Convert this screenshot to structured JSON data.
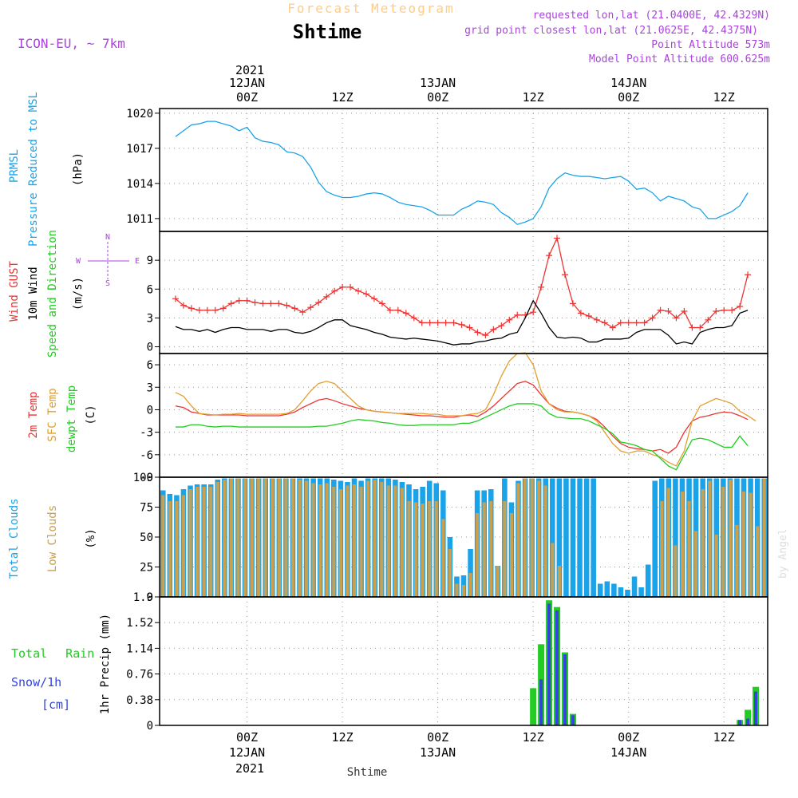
{
  "header": {
    "forecast_label": "Forecast Meteogram",
    "location": "Shtime",
    "model": "ICON-EU, ~ 7km",
    "requested": "requested lon,lat (21.0400E, 42.4329N)",
    "grid_point": "grid point closest lon,lat (21.0625E, 42.4375N)",
    "point_altitude": "Point Altitude 573m",
    "model_altitude": "Model Point Altitude 600.625m",
    "credit": "by Angel",
    "footer_location": "Shtime"
  },
  "time_axis": {
    "top_year": "2021",
    "bottom_year": "2021",
    "ticks": [
      {
        "pos": 9,
        "line1": "00Z",
        "line2": "12JAN"
      },
      {
        "pos": 21,
        "line1": "12Z",
        "line2": ""
      },
      {
        "pos": 33,
        "line1": "00Z",
        "line2": "13JAN"
      },
      {
        "pos": 45,
        "line1": "12Z",
        "line2": ""
      },
      {
        "pos": 57,
        "line1": "00Z",
        "line2": "14JAN"
      },
      {
        "pos": 69,
        "line1": "12Z",
        "line2": ""
      }
    ],
    "range": [
      -2,
      74.5
    ]
  },
  "colors": {
    "pressure": "#1aa3e8",
    "gust": "#ee3333",
    "wind": "#000000",
    "temp2m": "#ee3333",
    "sfc": "#e0a030",
    "dew": "#22cc22",
    "total_clouds": "#1aa3e8",
    "low_clouds": "#c8a050",
    "rain": "#22cc22",
    "snow": "#3344dd",
    "header_purple": "#aa44dd",
    "header_orange": "#ffcc88"
  },
  "chart_data": [
    {
      "type": "line",
      "title": "PRMSL",
      "ylabel_lines": [
        "PRMSL",
        "Pressure Reduced to MSL",
        "(hPa)"
      ],
      "yticks": [
        1011,
        1014,
        1017,
        1020
      ],
      "ylim": [
        1009.9,
        1020.4
      ],
      "series": [
        {
          "name": "PRMSL",
          "color": "#1aa3e8",
          "values": [
            1018.0,
            1018.5,
            1019.0,
            1019.1,
            1019.3,
            1019.3,
            1019.1,
            1018.9,
            1018.5,
            1018.8,
            1017.9,
            1017.6,
            1017.5,
            1017.3,
            1016.7,
            1016.6,
            1016.3,
            1015.4,
            1014.1,
            1013.3,
            1013.0,
            1012.8,
            1012.8,
            1012.9,
            1013.1,
            1013.2,
            1013.1,
            1012.8,
            1012.4,
            1012.2,
            1012.1,
            1012.0,
            1011.7,
            1011.3,
            1011.3,
            1011.3,
            1011.8,
            1012.1,
            1012.5,
            1012.4,
            1012.2,
            1011.5,
            1011.1,
            1010.5,
            1010.7,
            1011.0,
            1012.0,
            1013.6,
            1014.4,
            1014.9,
            1014.7,
            1014.6,
            1014.6,
            1014.5,
            1014.4,
            1014.5,
            1014.6,
            1014.2,
            1013.5,
            1013.6,
            1013.2,
            1012.5,
            1012.9,
            1012.7,
            1012.5,
            1012.0,
            1011.8,
            1011.0,
            1011.0,
            1011.3,
            1011.6,
            1012.1,
            1013.2
          ]
        }
      ]
    },
    {
      "type": "line",
      "title": "Wind",
      "ylabel_lines": [
        "Wind GUST",
        "10m Wind",
        "Speed and Direction",
        "(m/s)"
      ],
      "compass": {
        "w": "W",
        "e": "E",
        "n": "N",
        "s": "S"
      },
      "yticks": [
        0,
        3,
        6,
        9
      ],
      "ylim": [
        -0.7,
        12
      ],
      "series": [
        {
          "name": "Wind GUST",
          "color": "#ee3333",
          "values": [
            5.0,
            4.3,
            4.0,
            3.8,
            3.8,
            3.8,
            4.0,
            4.5,
            4.8,
            4.8,
            4.6,
            4.5,
            4.5,
            4.5,
            4.3,
            4.0,
            3.6,
            4.1,
            4.6,
            5.2,
            5.8,
            6.2,
            6.2,
            5.8,
            5.5,
            5.0,
            4.5,
            3.8,
            3.8,
            3.5,
            3.0,
            2.5,
            2.5,
            2.5,
            2.5,
            2.5,
            2.3,
            2.0,
            1.5,
            1.2,
            1.8,
            2.2,
            2.8,
            3.3,
            3.3,
            3.6,
            6.2,
            9.5,
            11.3,
            7.5,
            4.5,
            3.5,
            3.2,
            2.8,
            2.5,
            2.0,
            2.5,
            2.5,
            2.5,
            2.5,
            3.0,
            3.8,
            3.7,
            3.0,
            3.7,
            2.0,
            2.0,
            2.8,
            3.7,
            3.8,
            3.8,
            4.2,
            7.5
          ]
        },
        {
          "name": "10m Wind",
          "color": "#000000",
          "values": [
            2.1,
            1.8,
            1.8,
            1.6,
            1.8,
            1.5,
            1.8,
            2.0,
            2.0,
            1.8,
            1.8,
            1.8,
            1.6,
            1.8,
            1.8,
            1.5,
            1.4,
            1.6,
            2.0,
            2.5,
            2.8,
            2.8,
            2.2,
            2.0,
            1.8,
            1.5,
            1.3,
            1.0,
            0.9,
            0.8,
            0.9,
            0.8,
            0.7,
            0.6,
            0.4,
            0.2,
            0.3,
            0.3,
            0.5,
            0.6,
            0.8,
            0.9,
            1.3,
            1.5,
            3.0,
            4.8,
            3.5,
            2.0,
            1.0,
            0.9,
            1.0,
            0.9,
            0.5,
            0.5,
            0.8,
            0.8,
            0.8,
            0.9,
            1.5,
            1.8,
            1.8,
            1.8,
            1.2,
            0.3,
            0.5,
            0.3,
            1.5,
            1.8,
            2.0,
            2.0,
            2.2,
            3.5,
            3.8
          ]
        }
      ]
    },
    {
      "type": "line",
      "title": "Temperature",
      "ylabel_lines": [
        "2m Temp",
        "SFC Temp",
        "dewpt Temp",
        "(C)"
      ],
      "yticks": [
        -9,
        -6,
        -3,
        0,
        3,
        6
      ],
      "ylim": [
        -9,
        7.5
      ],
      "series": [
        {
          "name": "2m Temp",
          "color": "#ee3333",
          "values": [
            0.5,
            0.3,
            -0.3,
            -0.5,
            -0.7,
            -0.7,
            -0.7,
            -0.7,
            -0.7,
            -0.8,
            -0.8,
            -0.8,
            -0.8,
            -0.8,
            -0.6,
            -0.3,
            0.3,
            0.8,
            1.3,
            1.5,
            1.2,
            0.8,
            0.5,
            0.2,
            0.0,
            -0.2,
            -0.3,
            -0.4,
            -0.5,
            -0.6,
            -0.7,
            -0.8,
            -0.8,
            -0.9,
            -1.0,
            -1.0,
            -0.8,
            -0.7,
            -0.9,
            -0.3,
            0.5,
            1.5,
            2.5,
            3.5,
            3.8,
            3.3,
            2.0,
            0.8,
            0.2,
            -0.2,
            -0.3,
            -0.5,
            -0.8,
            -1.3,
            -2.3,
            -3.5,
            -4.5,
            -5.0,
            -5.2,
            -5.3,
            -5.5,
            -5.3,
            -5.8,
            -5.0,
            -3.0,
            -1.5,
            -1.0,
            -0.8,
            -0.5,
            -0.3,
            -0.4,
            -0.8,
            -1.3
          ]
        },
        {
          "name": "SFC Temp",
          "color": "#e0a030",
          "values": [
            2.3,
            1.8,
            0.5,
            -0.5,
            -0.6,
            -0.7,
            -0.6,
            -0.6,
            -0.5,
            -0.6,
            -0.6,
            -0.6,
            -0.6,
            -0.6,
            -0.5,
            0.0,
            1.2,
            2.5,
            3.5,
            3.8,
            3.5,
            2.5,
            1.5,
            0.5,
            0.0,
            -0.2,
            -0.3,
            -0.4,
            -0.5,
            -0.5,
            -0.5,
            -0.5,
            -0.6,
            -0.6,
            -0.8,
            -0.8,
            -0.8,
            -0.6,
            -0.5,
            0.0,
            2.0,
            4.5,
            6.5,
            7.5,
            7.6,
            6.0,
            2.5,
            0.8,
            0.0,
            -0.3,
            -0.3,
            -0.5,
            -0.8,
            -1.5,
            -3.0,
            -4.5,
            -5.5,
            -5.8,
            -5.5,
            -5.5,
            -6.0,
            -6.3,
            -7.0,
            -7.5,
            -5.5,
            -1.5,
            0.5,
            1.0,
            1.5,
            1.2,
            0.8,
            -0.2,
            -0.8,
            -1.5
          ]
        },
        {
          "name": "dewpt Temp",
          "color": "#22cc22",
          "values": [
            -2.3,
            -2.3,
            -2.0,
            -2.0,
            -2.2,
            -2.3,
            -2.2,
            -2.2,
            -2.3,
            -2.3,
            -2.3,
            -2.3,
            -2.3,
            -2.3,
            -2.3,
            -2.3,
            -2.3,
            -2.3,
            -2.2,
            -2.2,
            -2.0,
            -1.8,
            -1.5,
            -1.3,
            -1.4,
            -1.5,
            -1.7,
            -1.8,
            -2.0,
            -2.1,
            -2.1,
            -2.0,
            -2.0,
            -2.0,
            -2.0,
            -2.0,
            -1.8,
            -1.8,
            -1.5,
            -1.0,
            -0.5,
            0.0,
            0.5,
            0.8,
            0.8,
            0.8,
            0.5,
            -0.5,
            -1.0,
            -1.1,
            -1.2,
            -1.2,
            -1.5,
            -2.0,
            -2.5,
            -3.2,
            -4.3,
            -4.5,
            -4.8,
            -5.3,
            -5.5,
            -6.5,
            -7.5,
            -8.0,
            -6.0,
            -4.0,
            -3.8,
            -4.0,
            -4.5,
            -5.0,
            -5.0,
            -3.5,
            -4.8
          ]
        }
      ]
    },
    {
      "type": "bar",
      "title": "Clouds",
      "ylabel_lines": [
        "Total Clouds",
        "Low Clouds",
        "(%)"
      ],
      "yticks": [
        0,
        25,
        50,
        75,
        100
      ],
      "ylim": [
        0,
        100
      ],
      "series": [
        {
          "name": "Total Clouds",
          "color": "#1aa3e8",
          "values": [
            89,
            86,
            85,
            90,
            93,
            94,
            94,
            94,
            98,
            99,
            99,
            99,
            99,
            99,
            99,
            99,
            99,
            99,
            99,
            99,
            99,
            99,
            99,
            99,
            99,
            98,
            97,
            96,
            99,
            97,
            99,
            99,
            99,
            99,
            98,
            96,
            94,
            90,
            92,
            97,
            95,
            89,
            50,
            17,
            18,
            40,
            89,
            89,
            90,
            26,
            99,
            79,
            97,
            99,
            99,
            99,
            99,
            99,
            99,
            99,
            99,
            99,
            99,
            99,
            11,
            13,
            11,
            8,
            6,
            17,
            8,
            27,
            97,
            99,
            99,
            99,
            99,
            99,
            99,
            99,
            99,
            99,
            99,
            99,
            99,
            99,
            99,
            99,
            99
          ]
        },
        {
          "name": "Low Clouds",
          "color": "#c8a050",
          "values": [
            85,
            80,
            80,
            85,
            90,
            92,
            92,
            92,
            96,
            98,
            99,
            99,
            99,
            99,
            99,
            99,
            99,
            99,
            99,
            99,
            98,
            97,
            95,
            94,
            95,
            92,
            90,
            93,
            94,
            92,
            97,
            98,
            96,
            93,
            93,
            91,
            80,
            79,
            78,
            80,
            80,
            65,
            40,
            11,
            10,
            20,
            70,
            79,
            80,
            26,
            80,
            70,
            95,
            99,
            99,
            97,
            93,
            45,
            26,
            0,
            0,
            0,
            0,
            0,
            0,
            0,
            0,
            0,
            0,
            0,
            0,
            0,
            0,
            80,
            91,
            43,
            88,
            80,
            55,
            90,
            97,
            52,
            92,
            98,
            60,
            88,
            87,
            59,
            99
          ]
        }
      ]
    },
    {
      "type": "bar",
      "title": "Precipitation",
      "ylabel_lines": [
        "Total Rain",
        "Snow/1h",
        "[cm]",
        "1hr Precip (mm)"
      ],
      "yticks": [
        0,
        0.38,
        0.76,
        1.14,
        1.52,
        1.9
      ],
      "ylim": [
        0,
        1.9
      ],
      "series": [
        {
          "name": "Total Rain",
          "color": "#22cc22",
          "values": [
            0,
            0,
            0,
            0,
            0,
            0,
            0,
            0,
            0,
            0,
            0,
            0,
            0,
            0,
            0,
            0,
            0,
            0,
            0,
            0,
            0,
            0,
            0,
            0,
            0,
            0,
            0,
            0,
            0,
            0,
            0,
            0,
            0,
            0,
            0,
            0,
            0,
            0,
            0,
            0,
            0,
            0,
            0,
            0,
            0,
            0.55,
            1.2,
            1.85,
            1.75,
            1.08,
            0.17,
            0,
            0,
            0,
            0,
            0,
            0,
            0,
            0,
            0,
            0,
            0,
            0,
            0,
            0,
            0,
            0,
            0,
            0,
            0,
            0,
            0.08,
            0.23,
            0.57
          ]
        },
        {
          "name": "Snow/1h",
          "color": "#3344dd",
          "values": [
            0,
            0,
            0,
            0,
            0,
            0,
            0,
            0,
            0,
            0,
            0,
            0,
            0,
            0,
            0,
            0,
            0,
            0,
            0,
            0,
            0,
            0,
            0,
            0,
            0,
            0,
            0,
            0,
            0,
            0,
            0,
            0,
            0,
            0,
            0,
            0,
            0,
            0,
            0,
            0,
            0,
            0,
            0,
            0,
            0,
            0,
            0.68,
            1.8,
            1.7,
            1.05,
            0.15,
            0,
            0,
            0,
            0,
            0,
            0,
            0,
            0,
            0,
            0,
            0,
            0,
            0,
            0,
            0,
            0,
            0,
            0,
            0,
            0,
            0.08,
            0.1,
            0.5
          ]
        }
      ]
    }
  ]
}
